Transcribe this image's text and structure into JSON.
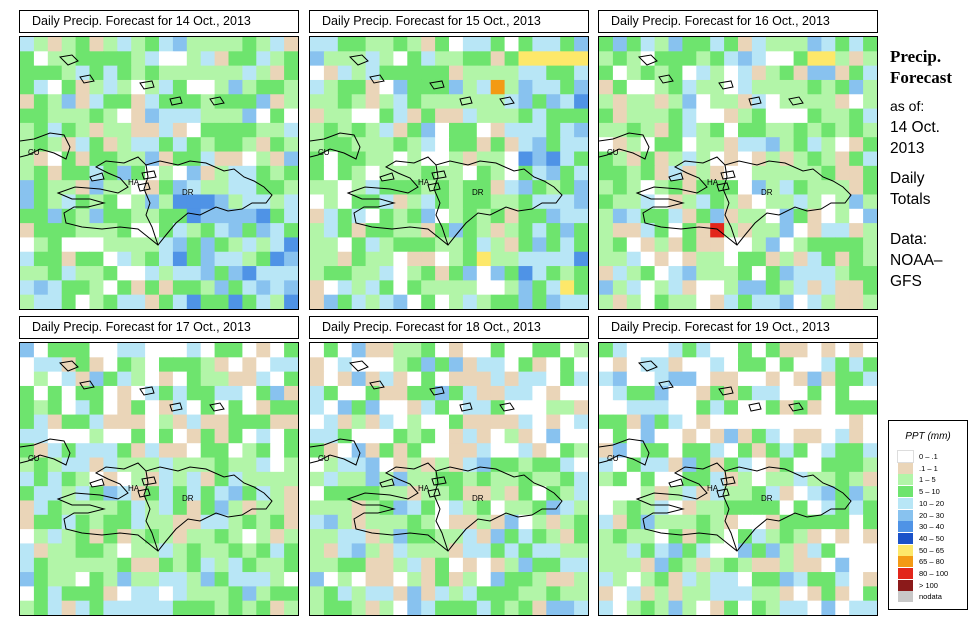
{
  "panels": [
    {
      "title": "Daily Precip. Forecast for  14 Oct., 2013",
      "seed": 11,
      "profile": "wetSE"
    },
    {
      "title": "Daily Precip. Forecast for  15 Oct., 2013",
      "seed": 23,
      "profile": "wetE"
    },
    {
      "title": "Daily Precip. Forecast for  16 Oct., 2013",
      "seed": 37,
      "profile": "mixed"
    },
    {
      "title": "Daily Precip. Forecast for  17 Oct., 2013",
      "seed": 41,
      "profile": "dryN"
    },
    {
      "title": "Daily Precip. Forecast for  18 Oct., 2013",
      "seed": 53,
      "profile": "dryN"
    },
    {
      "title": "Daily Precip. Forecast for  19 Oct., 2013",
      "seed": 67,
      "profile": "dryNE"
    }
  ],
  "map_labels": {
    "cuba": "CU",
    "haiti": "HA",
    "dominican_republic": "DR"
  },
  "sidebar": {
    "title_line1": "Precip.",
    "title_line2": "Forecast",
    "asof_line1": "as of:",
    "asof_line2": "14 Oct.",
    "asof_line3": "2013",
    "daily_line1": "Daily",
    "daily_line2": "Totals",
    "data_line1": "Data:",
    "data_line2": "NOAA–",
    "data_line3": "GFS"
  },
  "legend": {
    "title": "PPT (mm)",
    "items": [
      {
        "label": "0 – .1",
        "color": "#ffffff"
      },
      {
        "label": ".1 – 1",
        "color": "#ead5b8"
      },
      {
        "label": "1 – 5",
        "color": "#b2f5a8"
      },
      {
        "label": "5 – 10",
        "color": "#6ee46e"
      },
      {
        "label": "10 – 20",
        "color": "#b8e6f6"
      },
      {
        "label": "20 – 30",
        "color": "#88c2ef"
      },
      {
        "label": "30 – 40",
        "color": "#4f93e6"
      },
      {
        "label": "40 – 50",
        "color": "#1a52c9"
      },
      {
        "label": "50 – 65",
        "color": "#fde86a"
      },
      {
        "label": "65 – 80",
        "color": "#f39a14"
      },
      {
        "label": "80 – 100",
        "color": "#e2261b"
      },
      {
        "label": "> 100",
        "color": "#8b1a1a"
      },
      {
        "label": "nodata",
        "color": "#c8c8c8"
      }
    ]
  }
}
